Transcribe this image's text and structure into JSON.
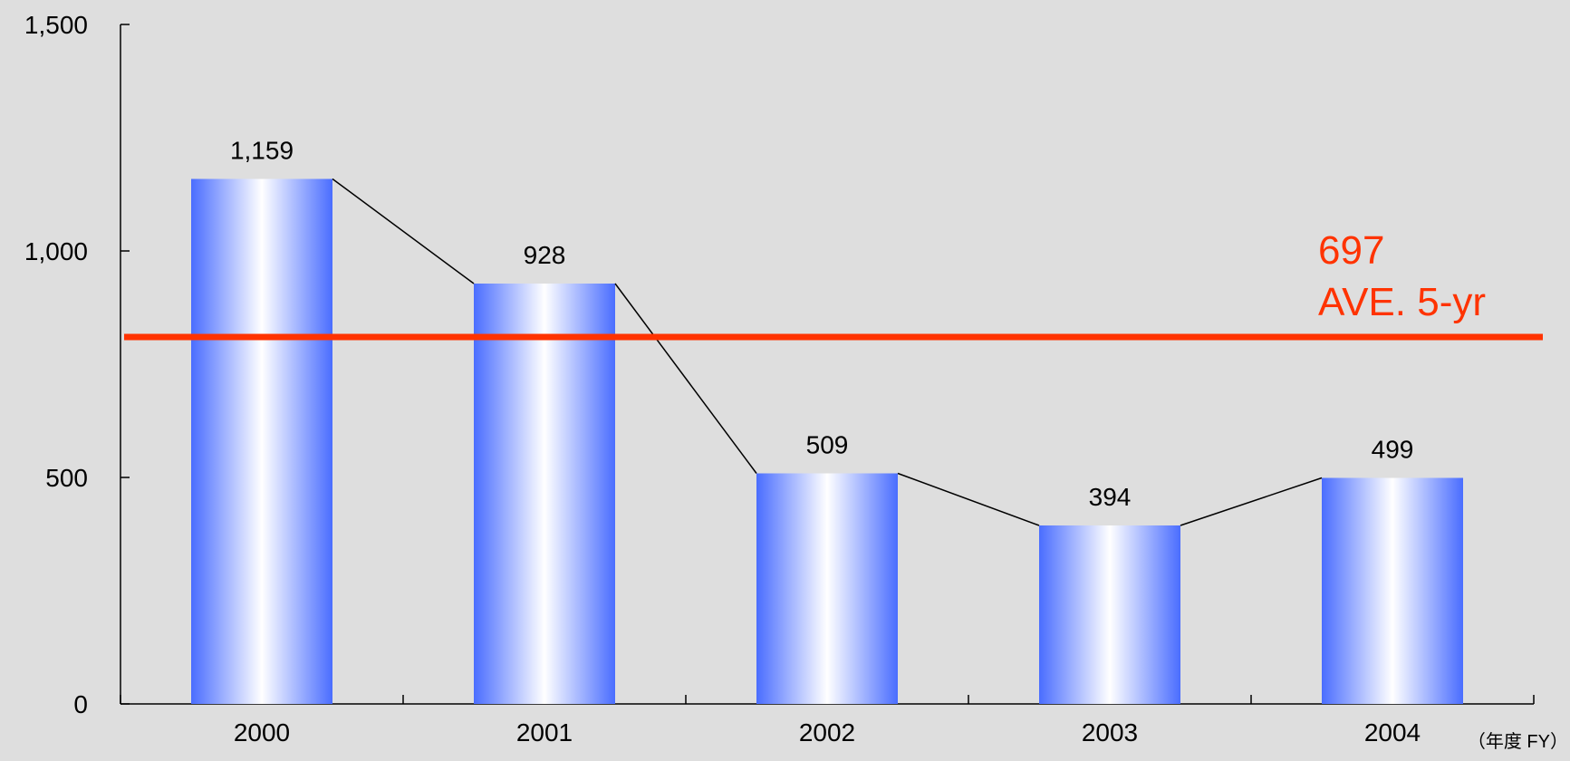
{
  "chart_data": {
    "type": "bar",
    "title": "",
    "xlabel": "",
    "ylabel": "",
    "categories": [
      "2000",
      "2001",
      "2002",
      "2003",
      "2004"
    ],
    "series": [
      {
        "values": [
          1159,
          928,
          509,
          394,
          499
        ],
        "data_labels": [
          "1,159",
          "928",
          "509",
          "394",
          "499"
        ]
      }
    ],
    "connector_line": true,
    "ylim": [
      0,
      1500
    ],
    "y_ticks": [
      {
        "value": 0,
        "label": "0"
      },
      {
        "value": 500,
        "label": "500"
      },
      {
        "value": 1000,
        "label": "1,000"
      },
      {
        "value": 1500,
        "label": "1,500"
      }
    ],
    "x_unit_label": "（年度 FY）",
    "reference_line": {
      "value": 697,
      "value_label": "697",
      "label": "AVE. 5-yr",
      "color": "#ff3300"
    },
    "bar_gradient": {
      "edge": "#4a6dff",
      "center": "#ffffff"
    },
    "grid": false,
    "legend": "none"
  }
}
